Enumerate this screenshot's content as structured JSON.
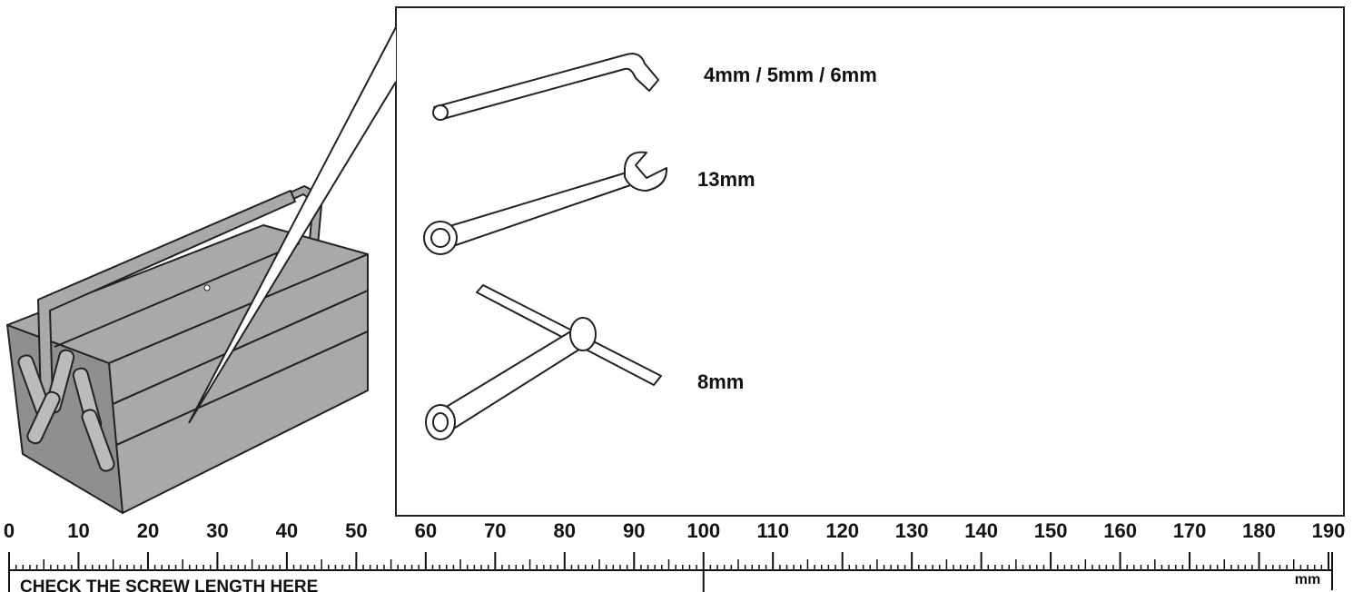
{
  "tools": [
    {
      "label": "4mm / 5mm / 6mm"
    },
    {
      "label": "13mm"
    },
    {
      "label": "8mm"
    }
  ],
  "ruler": {
    "ticks": [
      0,
      10,
      20,
      30,
      40,
      50,
      60,
      70,
      80,
      90,
      100,
      110,
      120,
      130,
      140,
      150,
      160,
      170,
      180,
      190
    ],
    "unit": "mm",
    "caption": "CHECK THE SCREW LENGTH HERE"
  }
}
